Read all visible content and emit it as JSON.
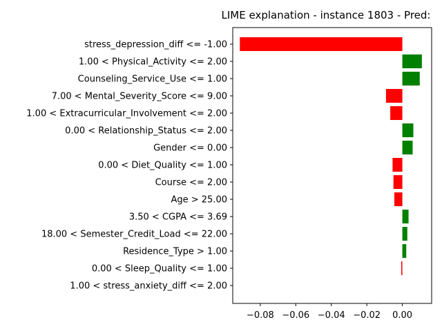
{
  "chart_data": {
    "type": "bar",
    "orientation": "horizontal",
    "title": "LIME explanation - instance 1803 - Pred:",
    "xlabel": "",
    "ylabel": "",
    "xlim": [
      -0.0955,
      0.0165
    ],
    "xticks": [
      -0.08,
      -0.06,
      -0.04,
      -0.02,
      0.0
    ],
    "xtick_labels": [
      "−0.08",
      "−0.06",
      "−0.04",
      "−0.02",
      "0.00"
    ],
    "grid": false,
    "positive_color": "#008000",
    "negative_color": "#ff0000",
    "categories": [
      "stress_depression_diff <= -1.00",
      "1.00 < Physical_Activity <= 2.00",
      "Counseling_Service_Use <= 1.00",
      "7.00 < Mental_Severity_Score <= 9.00",
      "1.00 < Extracurricular_Involvement <= 2.00",
      "0.00 < Relationship_Status <= 2.00",
      "Gender <= 0.00",
      "0.00 < Diet_Quality <= 1.00",
      "Course <= 2.00",
      "Age > 25.00",
      "3.50 < CGPA <= 3.69",
      "18.00 < Semester_Credit_Load <= 22.00",
      "Residence_Type > 1.00",
      "0.00 < Sleep_Quality <= 1.00",
      "1.00 < stress_anxiety_diff <= 2.00"
    ],
    "values": [
      -0.0915,
      0.011,
      0.0098,
      -0.0092,
      -0.0068,
      0.0062,
      0.0058,
      -0.0055,
      -0.005,
      -0.0045,
      0.0035,
      0.0028,
      0.0022,
      -0.0006,
      0.0
    ]
  }
}
